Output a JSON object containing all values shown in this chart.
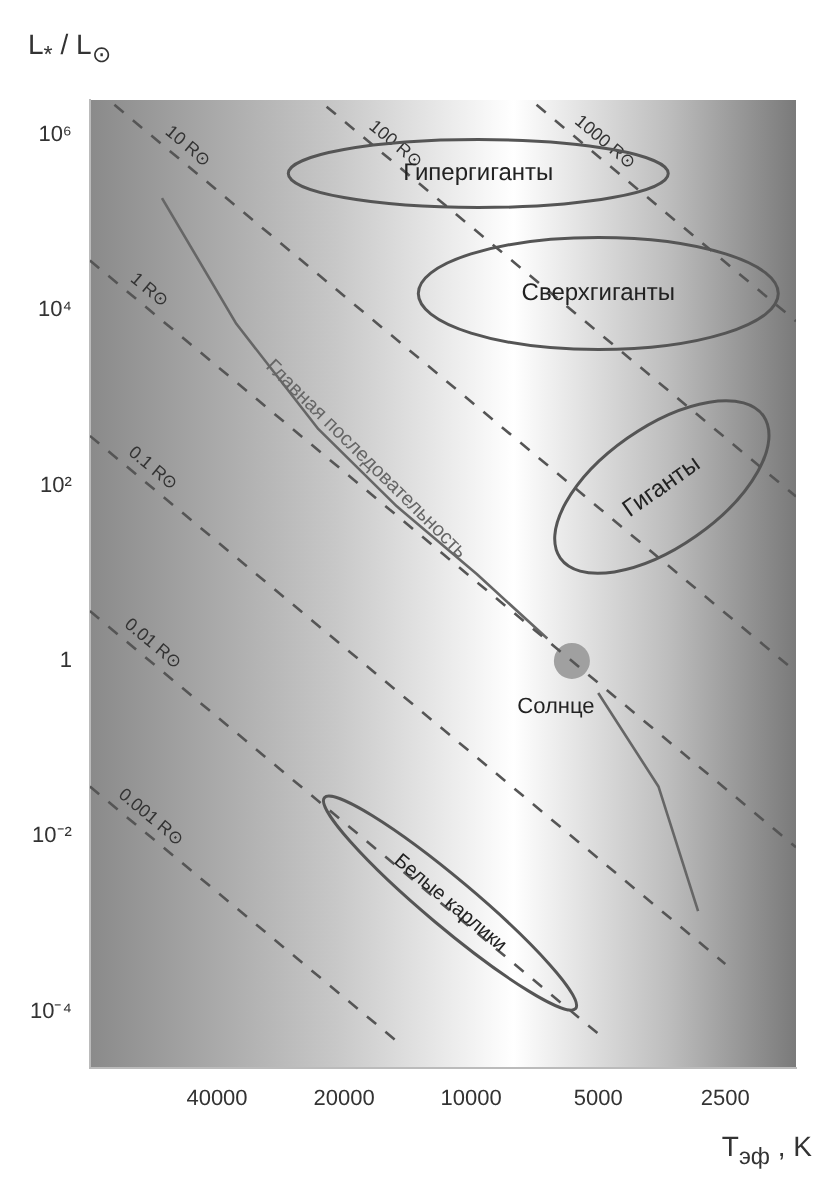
{
  "chart_data": {
    "type": "line",
    "xlabel": "T$_{эф}$ , K",
    "ylabel": "L$_{*}$ / L$_{⊙}$",
    "log": "xy",
    "grid": false,
    "legend": false,
    "marker": "none",
    "xlim": [
      80000,
      1700
    ],
    "xticks": [
      40000,
      20000,
      10000,
      5000,
      2500
    ],
    "ylim": [
      2.3e-05,
      2500000
    ],
    "yticks": [
      {
        "value": 1000000,
        "label": "10⁶"
      },
      {
        "value": 10000,
        "label": "10⁴"
      },
      {
        "value": 100,
        "label": "10²"
      },
      1,
      {
        "value": 0.01,
        "label": "10⁻²"
      },
      {
        "value": 0.0001,
        "label": "10⁻⁴"
      }
    ],
    "series": [
      {
        "name": "0.001 R⊙",
        "type": "line",
        "line_style": "dashed",
        "color": "#555555",
        "x": [
          80000,
          15000
        ],
        "values": [
          0.037,
          4.6e-05
        ]
      },
      {
        "name": "0.01 R⊙",
        "type": "line",
        "line_style": "dashed",
        "color": "#555555",
        "x": [
          80000,
          5000
        ],
        "values": [
          3.7,
          5.6e-05
        ]
      },
      {
        "name": "0.1 R⊙",
        "type": "line",
        "line_style": "dashed",
        "color": "#555555",
        "x": [
          80000,
          2500
        ],
        "values": [
          369,
          0.00035
        ]
      },
      {
        "name": "1 R⊙",
        "type": "line",
        "line_style": "dashed",
        "color": "#555555",
        "x": [
          80000,
          1700
        ],
        "values": [
          36900,
          0.0075
        ]
      },
      {
        "name": "10 R⊙",
        "type": "line",
        "line_style": "dashed",
        "color": "#555555",
        "x": [
          70000,
          1700
        ],
        "values": [
          2200000,
          0.75
        ]
      },
      {
        "name": "100 R⊙",
        "type": "line",
        "line_style": "dashed",
        "color": "#555555",
        "x": [
          22000,
          1700
        ],
        "values": [
          2100000,
          75
        ]
      },
      {
        "name": "1000 R⊙",
        "type": "line",
        "line_style": "dashed",
        "color": "#555555",
        "x": [
          7000,
          1700
        ],
        "values": [
          2200000,
          7500
        ]
      },
      {
        "name": "Главная последовательность",
        "type": "line",
        "line_style": "solid",
        "color": "#666666",
        "x": [
          54000,
          36000,
          23000,
          15000,
          9700,
          6600,
          5772,
          5000,
          3600,
          2900
        ],
        "values": [
          190000,
          7000,
          440,
          58,
          9.8,
          1.8,
          null,
          0.43,
          0.037,
          0.0014
        ]
      },
      {
        "type": "scatter",
        "marker": "circle",
        "color": "#a0a0a0",
        "x": [
          5772
        ],
        "values": [
          1
        ]
      }
    ],
    "annotations": [
      "Гипергиганты",
      "Сверхгиганты",
      "Гиганты",
      "Белые карлики",
      {
        "text": "Солнце",
        "x": 5772,
        "y": 1
      }
    ]
  }
}
